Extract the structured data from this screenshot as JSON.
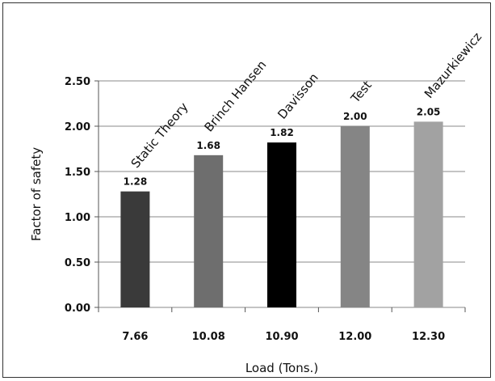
{
  "chart_data": {
    "type": "bar",
    "xlabel": "Load (Tons.)",
    "ylabel": "Factor of safety",
    "ylim": [
      0,
      2.5
    ],
    "y_ticks": [
      "0.00",
      "0.50",
      "1.00",
      "1.50",
      "2.00",
      "2.50"
    ],
    "grid": true,
    "x": [
      "7.66",
      "10.08",
      "10.90",
      "12.00",
      "12.30"
    ],
    "method_labels": [
      "Static Theory",
      "Brinch Hansen",
      "Davisson",
      "Test",
      "Mazurkiewicz"
    ],
    "values": [
      1.28,
      1.68,
      1.82,
      2.0,
      2.05
    ],
    "data_labels": [
      "1.28",
      "1.68",
      "1.82",
      "2.00",
      "2.05"
    ],
    "bar_colors": [
      "#3a3a3a",
      "#6e6e6e",
      "#000000",
      "#858585",
      "#a2a2a2"
    ]
  }
}
